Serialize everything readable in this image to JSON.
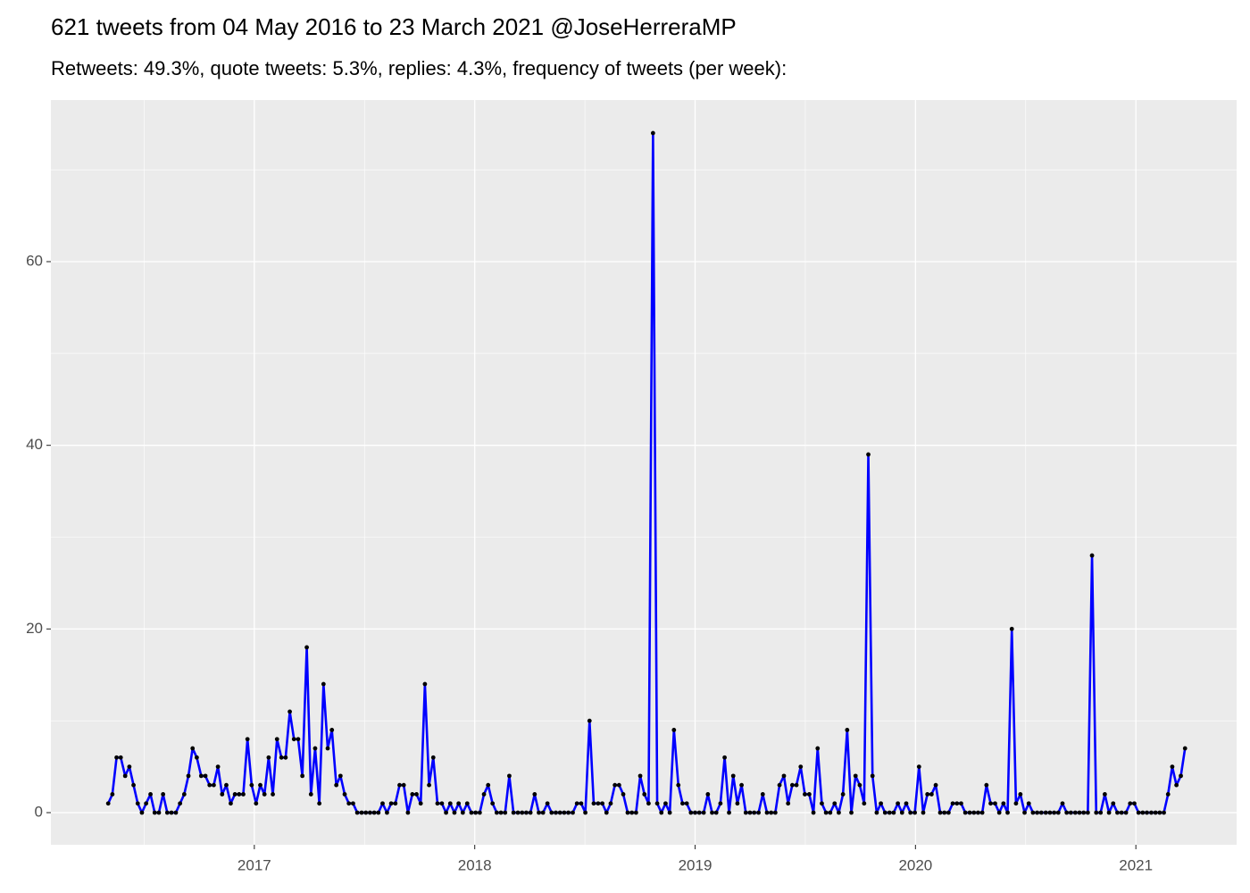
{
  "chart_data": {
    "type": "line",
    "title": "621 tweets from 04 May 2016 to 23 March 2021 @JoseHerreraMP",
    "subtitle": "Retweets: 49.3%, quote tweets: 5.3%, replies: 4.3%, frequency of tweets (per week):",
    "x": [
      2016.337,
      2016.356,
      2016.375,
      2016.394,
      2016.414,
      2016.433,
      2016.452,
      2016.471,
      2016.49,
      2016.509,
      2016.529,
      2016.548,
      2016.567,
      2016.586,
      2016.605,
      2016.624,
      2016.644,
      2016.663,
      2016.682,
      2016.701,
      2016.72,
      2016.739,
      2016.759,
      2016.778,
      2016.797,
      2016.816,
      2016.835,
      2016.854,
      2016.873,
      2016.893,
      2016.912,
      2016.931,
      2016.95,
      2016.969,
      2016.988,
      2017.008,
      2017.027,
      2017.046,
      2017.065,
      2017.084,
      2017.103,
      2017.123,
      2017.142,
      2017.161,
      2017.18,
      2017.199,
      2017.218,
      2017.238,
      2017.257,
      2017.276,
      2017.295,
      2017.314,
      2017.333,
      2017.352,
      2017.372,
      2017.391,
      2017.41,
      2017.429,
      2017.448,
      2017.467,
      2017.487,
      2017.506,
      2017.525,
      2017.544,
      2017.563,
      2017.582,
      2017.602,
      2017.621,
      2017.64,
      2017.659,
      2017.678,
      2017.697,
      2017.717,
      2017.736,
      2017.755,
      2017.774,
      2017.793,
      2017.812,
      2017.831,
      2017.851,
      2017.87,
      2017.889,
      2017.908,
      2017.927,
      2017.946,
      2017.966,
      2017.985,
      2018.004,
      2018.023,
      2018.042,
      2018.061,
      2018.081,
      2018.1,
      2018.119,
      2018.138,
      2018.157,
      2018.176,
      2018.196,
      2018.215,
      2018.234,
      2018.253,
      2018.272,
      2018.291,
      2018.31,
      2018.33,
      2018.349,
      2018.368,
      2018.387,
      2018.406,
      2018.425,
      2018.445,
      2018.464,
      2018.483,
      2018.502,
      2018.521,
      2018.54,
      2018.56,
      2018.579,
      2018.598,
      2018.617,
      2018.636,
      2018.655,
      2018.674,
      2018.694,
      2018.713,
      2018.732,
      2018.751,
      2018.77,
      2018.789,
      2018.809,
      2018.828,
      2018.847,
      2018.866,
      2018.885,
      2018.904,
      2018.924,
      2018.943,
      2018.962,
      2018.981,
      2019.0,
      2019.019,
      2019.039,
      2019.058,
      2019.077,
      2019.096,
      2019.115,
      2019.134,
      2019.154,
      2019.173,
      2019.192,
      2019.211,
      2019.23,
      2019.249,
      2019.268,
      2019.288,
      2019.307,
      2019.326,
      2019.345,
      2019.364,
      2019.383,
      2019.403,
      2019.422,
      2019.441,
      2019.46,
      2019.479,
      2019.498,
      2019.518,
      2019.537,
      2019.556,
      2019.575,
      2019.594,
      2019.613,
      2019.633,
      2019.652,
      2019.671,
      2019.69,
      2019.709,
      2019.728,
      2019.747,
      2019.767,
      2019.786,
      2019.805,
      2019.824,
      2019.843,
      2019.862,
      2019.882,
      2019.901,
      2019.92,
      2019.939,
      2019.958,
      2019.977,
      2019.997,
      2020.016,
      2020.035,
      2020.054,
      2020.073,
      2020.092,
      2020.112,
      2020.131,
      2020.15,
      2020.169,
      2020.188,
      2020.207,
      2020.226,
      2020.246,
      2020.265,
      2020.284,
      2020.303,
      2020.322,
      2020.341,
      2020.361,
      2020.38,
      2020.399,
      2020.418,
      2020.437,
      2020.456,
      2020.476,
      2020.495,
      2020.514,
      2020.533,
      2020.552,
      2020.571,
      2020.591,
      2020.61,
      2020.629,
      2020.648,
      2020.667,
      2020.686,
      2020.705,
      2020.725,
      2020.744,
      2020.763,
      2020.782,
      2020.801,
      2020.82,
      2020.84,
      2020.859,
      2020.878,
      2020.897,
      2020.916,
      2020.935,
      2020.955,
      2020.974,
      2020.993,
      2021.012,
      2021.031,
      2021.05,
      2021.07,
      2021.089,
      2021.108,
      2021.127,
      2021.146,
      2021.165,
      2021.184,
      2021.204,
      2021.223
    ],
    "series": [
      {
        "color": "#0000ff",
        "values": [
          1,
          2,
          6,
          6,
          4,
          5,
          3,
          1,
          0,
          1,
          2,
          0,
          0,
          2,
          0,
          0,
          0,
          1,
          2,
          4,
          7,
          6,
          4,
          4,
          3,
          3,
          5,
          2,
          3,
          1,
          2,
          2,
          2,
          8,
          3,
          1,
          3,
          2,
          6,
          2,
          8,
          6,
          6,
          11,
          8,
          8,
          4,
          18,
          2,
          7,
          1,
          14,
          7,
          9,
          3,
          4,
          2,
          1,
          1,
          0,
          0,
          0,
          0,
          0,
          0,
          1,
          0,
          1,
          1,
          3,
          3,
          0,
          2,
          2,
          1,
          14,
          3,
          6,
          1,
          1,
          0,
          1,
          0,
          1,
          0,
          1,
          0,
          0,
          0,
          2,
          3,
          1,
          0,
          0,
          0,
          4,
          0,
          0,
          0,
          0,
          0,
          2,
          0,
          0,
          1,
          0,
          0,
          0,
          0,
          0,
          0,
          1,
          1,
          0,
          10,
          1,
          1,
          1,
          0,
          1,
          3,
          3,
          2,
          0,
          0,
          0,
          4,
          2,
          1,
          74,
          1,
          0,
          1,
          0,
          9,
          3,
          1,
          1,
          0,
          0,
          0,
          0,
          2,
          0,
          0,
          1,
          6,
          0,
          4,
          1,
          3,
          0,
          0,
          0,
          0,
          2,
          0,
          0,
          0,
          3,
          4,
          1,
          3,
          3,
          5,
          2,
          2,
          0,
          7,
          1,
          0,
          0,
          1,
          0,
          2,
          9,
          0,
          4,
          3,
          1,
          39,
          4,
          0,
          1,
          0,
          0,
          0,
          1,
          0,
          1,
          0,
          0,
          5,
          0,
          2,
          2,
          3,
          0,
          0,
          0,
          1,
          1,
          1,
          0,
          0,
          0,
          0,
          0,
          3,
          1,
          1,
          0,
          1,
          0,
          20,
          1,
          2,
          0,
          1,
          0,
          0,
          0,
          0,
          0,
          0,
          0,
          1,
          0,
          0,
          0,
          0,
          0,
          0,
          28,
          0,
          0,
          2,
          0,
          1,
          0,
          0,
          0,
          1,
          1,
          0,
          0,
          0,
          0,
          0,
          0,
          0,
          2,
          5,
          3,
          4,
          7
        ]
      }
    ],
    "point_color": "#000000",
    "xlim": [
      2016.077,
      2021.457
    ],
    "xticks": [
      2017,
      2018,
      2019,
      2020,
      2021
    ],
    "ylim": [
      -3.5,
      77.6
    ],
    "yticks": [
      0,
      20,
      40,
      60
    ],
    "grid": true
  }
}
